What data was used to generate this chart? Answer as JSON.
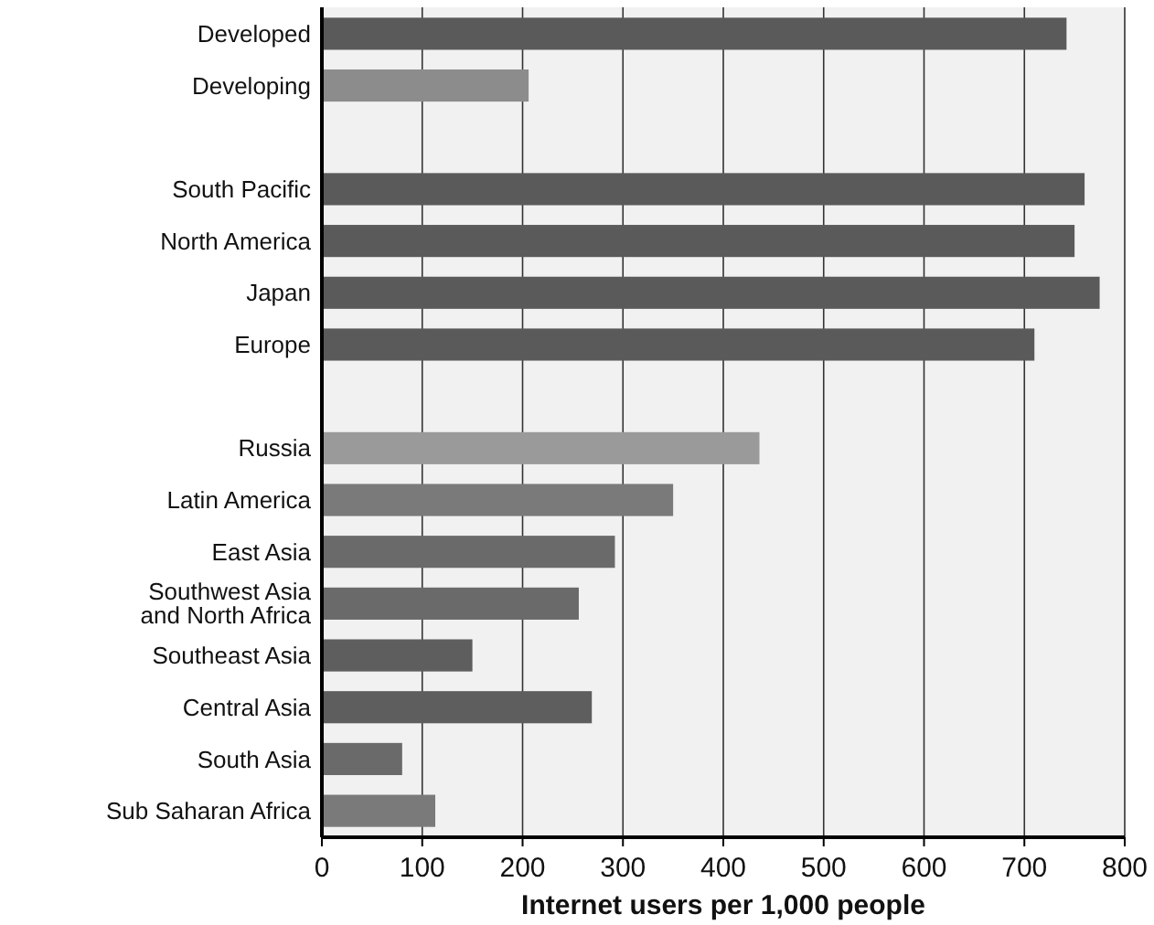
{
  "chart_data": {
    "type": "bar",
    "orientation": "horizontal",
    "xlabel": "Internet users per 1,000 people",
    "categories": [
      "Developed",
      "Developing",
      null,
      "South Pacific",
      "North America",
      "Japan",
      "Europe",
      null,
      "Russia",
      "Latin America",
      "East Asia",
      "Southwest Asia\nand North Africa",
      "Southeast Asia",
      "Central Asia",
      "South Asia",
      "Sub Saharan Africa"
    ],
    "values": [
      742,
      206,
      null,
      760,
      750,
      775,
      710,
      null,
      436,
      350,
      292,
      256,
      150,
      269,
      80,
      113
    ],
    "colors": [
      "#5a5a5a",
      "#8c8c8c",
      null,
      "#5a5a5a",
      "#5a5a5a",
      "#5a5a5a",
      "#5a5a5a",
      null,
      "#9a9a9a",
      "#7a7a7a",
      "#6a6a6a",
      "#6a6a6a",
      "#5e5e5e",
      "#5e5e5e",
      "#6a6a6a",
      "#7a7a7a"
    ],
    "xlim": [
      0,
      800
    ],
    "xticks": [
      0,
      100,
      200,
      300,
      400,
      500,
      600,
      700,
      800
    ],
    "grid": "x"
  }
}
